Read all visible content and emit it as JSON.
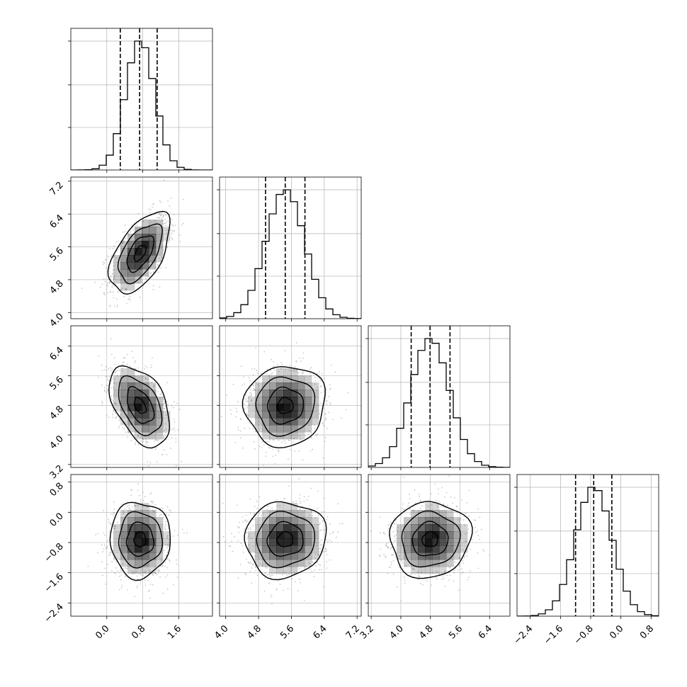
{
  "chart_data": {
    "type": "corner",
    "num_params": 4,
    "parameters": [
      {
        "ticks": [
          0.0,
          0.8,
          1.6
        ],
        "tick_labels": [
          "0.0",
          "0.8",
          "1.6"
        ],
        "range": [
          -0.8,
          2.35
        ],
        "quantiles": [
          0.3,
          0.73,
          1.12
        ],
        "histogram_mean": 0.74,
        "histogram_sd": 0.32
      },
      {
        "ticks": [
          4.0,
          4.8,
          5.6,
          6.4,
          7.2
        ],
        "tick_labels": [
          "4.0",
          "4.8",
          "5.6",
          "6.4",
          "7.2"
        ],
        "range": [
          3.85,
          7.3
        ],
        "quantiles": [
          4.97,
          5.45,
          5.93
        ],
        "histogram_mean": 5.45,
        "histogram_sd": 0.47
      },
      {
        "ticks": [
          3.2,
          4.0,
          4.8,
          5.6,
          6.4
        ],
        "tick_labels": [
          "3.2",
          "4.0",
          "4.8",
          "5.6",
          "6.4"
        ],
        "range": [
          3.12,
          6.95
        ],
        "quantiles": [
          4.28,
          4.79,
          5.33
        ],
        "histogram_mean": 4.79,
        "histogram_sd": 0.52
      },
      {
        "ticks": [
          -2.4,
          -1.6,
          -0.8,
          0.0,
          0.8
        ],
        "tick_labels": [
          "−2.4",
          "−1.6",
          "−0.8",
          "0.0",
          "0.8"
        ],
        "range": [
          -2.75,
          1.0
        ],
        "quantiles": [
          -1.2,
          -0.72,
          -0.24
        ],
        "histogram_mean": -0.72,
        "histogram_sd": 0.48
      }
    ],
    "correlations": [
      {
        "row": 1,
        "col": 0,
        "rho": 0.55
      },
      {
        "row": 2,
        "col": 0,
        "rho": -0.45
      },
      {
        "row": 2,
        "col": 1,
        "rho": 0.05
      },
      {
        "row": 3,
        "col": 0,
        "rho": 0.0
      },
      {
        "row": 3,
        "col": 1,
        "rho": 0.05
      },
      {
        "row": 3,
        "col": 2,
        "rho": 0.05
      }
    ],
    "contour_levels": 4,
    "grid": true,
    "colors": {
      "line": "#000000",
      "points": "#9a9a9a",
      "grid": "#b0b0b0",
      "density": "#000000"
    }
  }
}
